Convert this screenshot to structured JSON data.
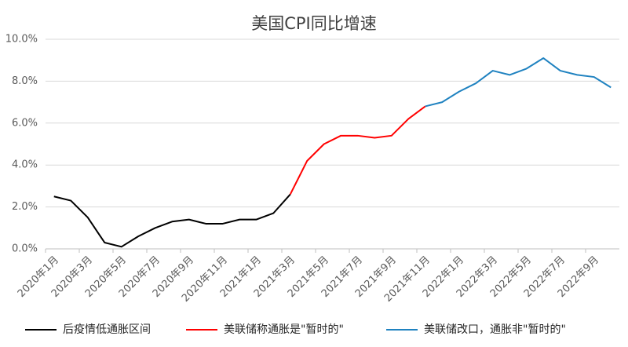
{
  "chart_data": {
    "type": "line",
    "title": "美国CPI同比增速",
    "categories": [
      "2020年1月",
      null,
      "2020年3月",
      null,
      "2020年5月",
      null,
      "2020年7月",
      null,
      "2020年9月",
      null,
      "2020年11月",
      null,
      "2021年1月",
      null,
      "2021年3月",
      null,
      "2021年5月",
      null,
      "2021年7月",
      null,
      "2021年9月",
      null,
      "2021年11月",
      null,
      "2022年1月",
      null,
      "2022年3月",
      null,
      "2022年5月",
      null,
      "2022年7月",
      null,
      "2022年9月",
      null
    ],
    "series": [
      {
        "name": "后疫情低通胀区间",
        "color": "#000000",
        "values": [
          2.5,
          2.3,
          1.5,
          0.3,
          0.1,
          0.6,
          1.0,
          1.3,
          1.4,
          1.2,
          1.2,
          1.4,
          1.4,
          1.7,
          2.6,
          null,
          null,
          null,
          null,
          null,
          null,
          null,
          null,
          null,
          null,
          null,
          null,
          null,
          null,
          null,
          null,
          null,
          null,
          null
        ]
      },
      {
        "name": "美联储称通胀是\"暂时的\"",
        "color": "#ff0000",
        "values": [
          null,
          null,
          null,
          null,
          null,
          null,
          null,
          null,
          null,
          null,
          null,
          null,
          null,
          null,
          2.6,
          4.2,
          5.0,
          5.4,
          5.4,
          5.3,
          5.4,
          6.2,
          6.8,
          null,
          null,
          null,
          null,
          null,
          null,
          null,
          null,
          null,
          null,
          null
        ]
      },
      {
        "name": "美联储改口，通胀非\"暂时的\"",
        "color": "#1f82c0",
        "values": [
          null,
          null,
          null,
          null,
          null,
          null,
          null,
          null,
          null,
          null,
          null,
          null,
          null,
          null,
          null,
          null,
          null,
          null,
          null,
          null,
          null,
          null,
          6.8,
          7.0,
          7.5,
          7.9,
          8.5,
          8.3,
          8.6,
          9.1,
          8.5,
          8.3,
          8.2,
          7.7
        ]
      }
    ],
    "ylim": [
      0,
      10
    ],
    "yticks": [
      {
        "value": 0,
        "label": "0.0%"
      },
      {
        "value": 2,
        "label": "2.0%"
      },
      {
        "value": 4,
        "label": "4.0%"
      },
      {
        "value": 6,
        "label": "6.0%"
      },
      {
        "value": 8,
        "label": "8.0%"
      },
      {
        "value": 10,
        "label": "10.0%"
      }
    ],
    "grid": true
  }
}
